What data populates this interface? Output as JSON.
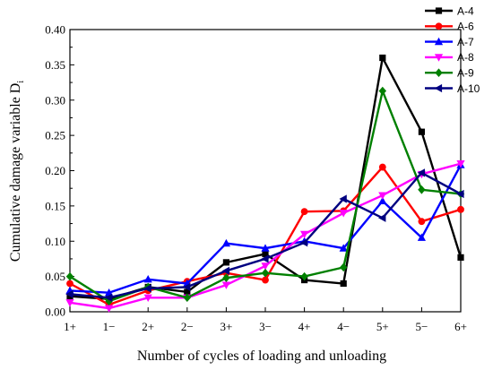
{
  "chart_data": {
    "type": "line",
    "title": "",
    "xlabel": "Number of cycles of loading and unloading",
    "ylabel": "Cumulative damage variable D",
    "ylabel_subscript": "i",
    "ylim": [
      0,
      0.4
    ],
    "yticks": [
      "0.00",
      "0.05",
      "0.10",
      "0.15",
      "0.20",
      "0.25",
      "0.30",
      "0.35",
      "0.40"
    ],
    "categories": [
      "1+",
      "1−",
      "2+",
      "2−",
      "3+",
      "3−",
      "4+",
      "4−",
      "5+",
      "5−",
      "6+"
    ],
    "grid": false,
    "legend_position": "top-right",
    "series": [
      {
        "name": "A-4",
        "color": "#000000",
        "marker": "square",
        "values": [
          0.022,
          0.018,
          0.035,
          0.028,
          0.07,
          0.082,
          0.045,
          0.04,
          0.36,
          0.255,
          0.077
        ]
      },
      {
        "name": "A-6",
        "color": "#ff0000",
        "marker": "circle",
        "values": [
          0.04,
          0.01,
          0.03,
          0.043,
          0.055,
          0.045,
          0.142,
          0.143,
          0.205,
          0.128,
          0.145
        ]
      },
      {
        "name": "A-7",
        "color": "#0000ff",
        "marker": "triangle-up",
        "values": [
          0.03,
          0.027,
          0.046,
          0.04,
          0.097,
          0.09,
          0.1,
          0.09,
          0.157,
          0.105,
          0.208
        ]
      },
      {
        "name": "A-8",
        "color": "#ff00ff",
        "marker": "triangle-down",
        "values": [
          0.013,
          0.005,
          0.02,
          0.02,
          0.038,
          0.065,
          0.11,
          0.14,
          0.165,
          0.195,
          0.21
        ]
      },
      {
        "name": "A-9",
        "color": "#008000",
        "marker": "diamond",
        "values": [
          0.05,
          0.015,
          0.035,
          0.02,
          0.048,
          0.055,
          0.05,
          0.063,
          0.313,
          0.173,
          0.167
        ]
      },
      {
        "name": "A-10",
        "color": "#000080",
        "marker": "triangle-left",
        "values": [
          0.025,
          0.02,
          0.033,
          0.035,
          0.058,
          0.075,
          0.098,
          0.16,
          0.133,
          0.197,
          0.167
        ]
      }
    ]
  }
}
